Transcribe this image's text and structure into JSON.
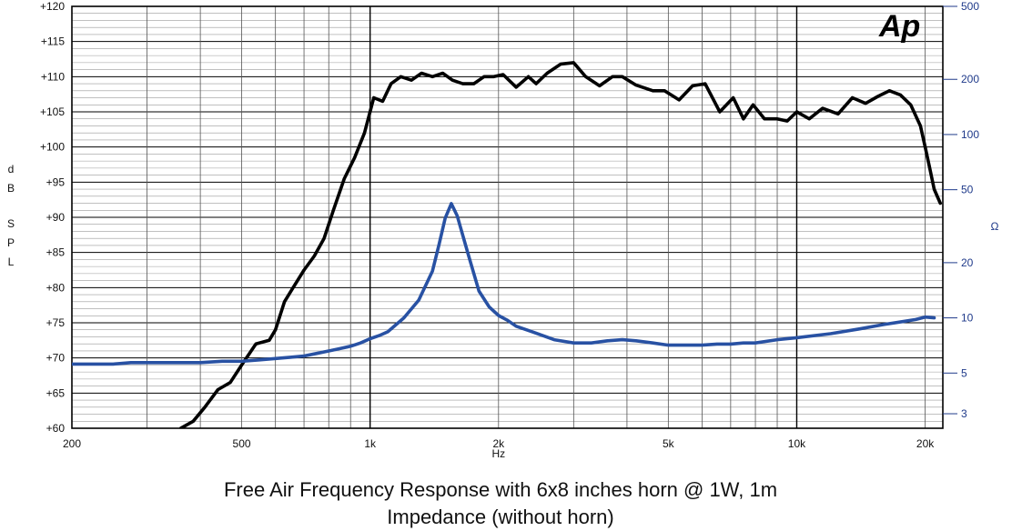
{
  "chart_data": {
    "type": "line",
    "title": "Free Air Frequency Response with 6x8 inches horn @ 1W, 1m",
    "subtitle": "Impedance (without horn)",
    "xlabel": "Hz",
    "xscale": "log",
    "xlim": [
      200,
      22000
    ],
    "x_ticks": [
      200,
      500,
      1000,
      2000,
      5000,
      10000,
      20000
    ],
    "x_tick_labels": [
      "200",
      "500",
      "1k",
      "2k",
      "5k",
      "10k",
      "20k"
    ],
    "ylabel_left": [
      "d",
      "B",
      "S",
      "P",
      "L"
    ],
    "ylim_left": [
      60,
      120
    ],
    "y_ticks_left": [
      60,
      65,
      70,
      75,
      80,
      85,
      90,
      95,
      100,
      105,
      110,
      115,
      120
    ],
    "y_tick_labels_left": [
      "+60",
      "+65",
      "+70",
      "+75",
      "+80",
      "+85",
      "+90",
      "+95",
      "+100",
      "+105",
      "+110",
      "+115",
      "+120"
    ],
    "ylabel_right": "Ω",
    "yscale_right": "log",
    "ylim_right": [
      2.5,
      500
    ],
    "y_ticks_right": [
      3,
      5,
      10,
      20,
      50,
      100,
      200,
      500
    ],
    "y_tick_labels_right": [
      "3",
      "5",
      "10",
      "20",
      "50",
      "100",
      "200",
      "500"
    ],
    "logo_text": "Ap",
    "series": [
      {
        "name": "SPL (dB)",
        "axis": "left",
        "color": "#000000",
        "x": [
          360,
          385,
          410,
          440,
          470,
          500,
          540,
          580,
          600,
          630,
          660,
          700,
          740,
          780,
          820,
          870,
          920,
          970,
          1020,
          1070,
          1120,
          1180,
          1250,
          1320,
          1400,
          1480,
          1560,
          1650,
          1750,
          1850,
          1950,
          2050,
          2200,
          2350,
          2450,
          2600,
          2800,
          3000,
          3200,
          3450,
          3700,
          3900,
          4200,
          4600,
          4900,
          5300,
          5700,
          6100,
          6600,
          7100,
          7500,
          7900,
          8400,
          9000,
          9500,
          10000,
          10700,
          11500,
          12500,
          13500,
          14500,
          15500,
          16500,
          17500,
          18500,
          19500,
          20000,
          20500,
          21000,
          21700
        ],
        "values": [
          60,
          61,
          63,
          65.5,
          66.5,
          69,
          72,
          72.5,
          74,
          78,
          80,
          82.5,
          84.5,
          87,
          91,
          95.5,
          98.5,
          102,
          107,
          106.5,
          109,
          110,
          109.5,
          110.5,
          110,
          110.5,
          109.5,
          109,
          109,
          110,
          110,
          110.3,
          108.5,
          110,
          109,
          110.5,
          111.8,
          112,
          110,
          108.7,
          110,
          110,
          108.8,
          108,
          108,
          106.7,
          108.7,
          109,
          105,
          107,
          104,
          106,
          104,
          104,
          103.7,
          105,
          104,
          105.5,
          104.7,
          107,
          106.2,
          107.2,
          108,
          107.4,
          106,
          103,
          100,
          97,
          94,
          92
        ]
      },
      {
        "name": "Impedance (Ω)",
        "axis": "right",
        "color": "#2851a3",
        "x": [
          200,
          250,
          275,
          300,
          350,
          400,
          450,
          500,
          550,
          600,
          650,
          700,
          750,
          800,
          850,
          900,
          950,
          1000,
          1050,
          1100,
          1200,
          1300,
          1400,
          1450,
          1500,
          1550,
          1600,
          1700,
          1800,
          1900,
          2000,
          2100,
          2200,
          2400,
          2700,
          3000,
          3300,
          3600,
          3900,
          4200,
          4600,
          5000,
          5500,
          6000,
          6500,
          7000,
          7500,
          8000,
          9000,
          10000,
          12000,
          14000,
          16000,
          18000,
          19000,
          20000,
          21000
        ],
        "values": [
          5.6,
          5.6,
          5.7,
          5.7,
          5.7,
          5.7,
          5.8,
          5.8,
          5.9,
          6.0,
          6.1,
          6.2,
          6.4,
          6.6,
          6.8,
          7.0,
          7.3,
          7.7,
          8.0,
          8.4,
          10,
          12.5,
          18,
          25,
          35,
          42,
          36,
          22,
          14,
          11.5,
          10.3,
          9.7,
          9.0,
          8.4,
          7.6,
          7.3,
          7.3,
          7.5,
          7.6,
          7.5,
          7.3,
          7.1,
          7.1,
          7.1,
          7.2,
          7.2,
          7.3,
          7.3,
          7.6,
          7.8,
          8.2,
          8.7,
          9.2,
          9.6,
          9.8,
          10.1,
          10.0
        ]
      }
    ]
  }
}
